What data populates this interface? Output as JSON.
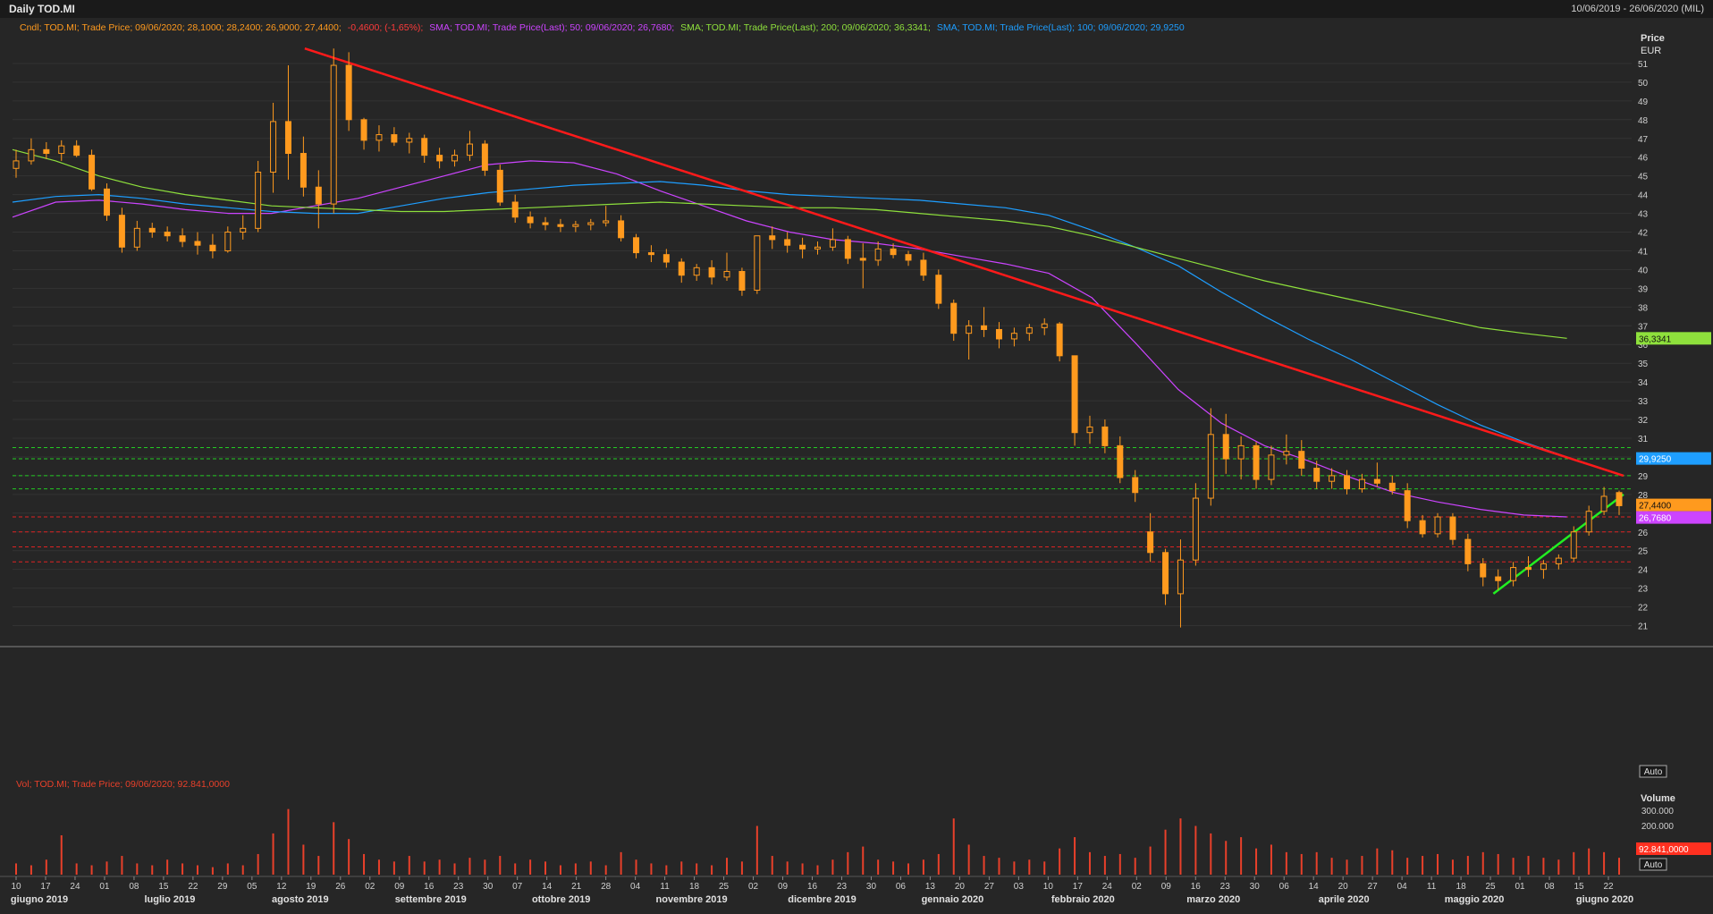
{
  "header": {
    "title": "Daily TOD.MI",
    "range": "10/06/2019 - 26/06/2020 (MIL)"
  },
  "legend": {
    "candle": "Cndl; TOD.MI; Trade Price; 09/06/2020; 28,1000; 28,2400; 26,9000; 27,4400;",
    "candle_change": "-0,4600; (-1,65%);",
    "sma50": "SMA; TOD.MI; Trade Price(Last); 50; 09/06/2020; 26,7680;",
    "sma200": "SMA; TOD.MI; Trade Price(Last); 200; 09/06/2020; 36,3341;",
    "sma100": "SMA; TOD.MI; Trade Price(Last); 100; 09/06/2020; 29,9250",
    "volume": "Vol; TOD.MI; Trade Price; 09/06/2020; 92.841,0000"
  },
  "axis": {
    "price_title": "Price",
    "price_unit": "EUR",
    "volume_title": "Volume",
    "auto_label": "Auto",
    "volume_ticks": [
      "300.000",
      "200.000"
    ]
  },
  "tags": {
    "sma200": "36,3341",
    "sma100": "29,9250",
    "last": "27,4400",
    "sma50": "26,7680",
    "volume": "92.841,0000"
  },
  "colors": {
    "background": "#262626",
    "candle": "#ff9a1e",
    "sma50": "#cc44ff",
    "sma100": "#1e9eff",
    "sma200": "#8ee03c",
    "trend_down": "#ff1a1a",
    "trend_up": "#22ee22",
    "support": "#22cc22",
    "resistance": "#dd2222",
    "volume": "#e8402a"
  },
  "chart_data": {
    "type": "line",
    "ylim": [
      20.5,
      52
    ],
    "yticks": [
      21,
      22,
      23,
      24,
      25,
      26,
      27,
      28,
      29,
      30,
      31,
      32,
      33,
      34,
      35,
      36,
      37,
      38,
      39,
      40,
      41,
      42,
      43,
      44,
      45,
      46,
      47,
      48,
      49,
      50,
      51
    ],
    "day_labels": [
      "10",
      "17",
      "24",
      "01",
      "08",
      "15",
      "22",
      "29",
      "05",
      "12",
      "19",
      "26",
      "02",
      "09",
      "16",
      "23",
      "30",
      "07",
      "14",
      "21",
      "28",
      "04",
      "11",
      "18",
      "25",
      "02",
      "09",
      "16",
      "23",
      "30",
      "06",
      "13",
      "20",
      "27",
      "03",
      "10",
      "17",
      "24",
      "02",
      "09",
      "16",
      "23",
      "30",
      "06",
      "14",
      "20",
      "27",
      "04",
      "11",
      "18",
      "25",
      "01",
      "08",
      "15",
      "22"
    ],
    "month_labels": [
      "giugno 2019",
      "luglio 2019",
      "agosto 2019",
      "settembre 2019",
      "ottobre 2019",
      "novembre 2019",
      "dicembre 2019",
      "gennaio 2020",
      "febbraio 2020",
      "marzo 2020",
      "aprile 2020",
      "maggio 2020",
      "giugno 2020"
    ],
    "series": [
      {
        "name": "Cndl; TOD.MI; Trade Price",
        "values": [
          [
            45.4,
            46.4,
            44.9,
            45.8
          ],
          [
            45.8,
            47.0,
            45.6,
            46.4
          ],
          [
            46.4,
            46.8,
            45.9,
            46.2
          ],
          [
            46.2,
            46.9,
            45.8,
            46.6
          ],
          [
            46.6,
            46.9,
            46.0,
            46.1
          ],
          [
            46.1,
            46.4,
            44.2,
            44.3
          ],
          [
            44.3,
            44.6,
            42.6,
            42.9
          ],
          [
            42.9,
            43.3,
            40.9,
            41.2
          ],
          [
            41.2,
            42.6,
            41.0,
            42.2
          ],
          [
            42.2,
            42.5,
            41.7,
            42.0
          ],
          [
            42.0,
            42.3,
            41.5,
            41.8
          ],
          [
            41.8,
            42.2,
            41.2,
            41.5
          ],
          [
            41.5,
            42.0,
            40.8,
            41.3
          ],
          [
            41.3,
            41.9,
            40.6,
            41.0
          ],
          [
            41.0,
            42.3,
            40.9,
            42.0
          ],
          [
            42.0,
            42.9,
            41.6,
            42.2
          ],
          [
            42.2,
            45.8,
            42.0,
            45.2
          ],
          [
            45.2,
            48.9,
            44.1,
            47.9
          ],
          [
            47.9,
            50.9,
            44.8,
            46.2
          ],
          [
            46.2,
            47.1,
            43.9,
            44.4
          ],
          [
            44.4,
            45.3,
            42.2,
            43.5
          ],
          [
            43.5,
            51.8,
            43.0,
            50.9
          ],
          [
            50.9,
            51.6,
            47.4,
            48.0
          ],
          [
            48.0,
            48.1,
            46.4,
            46.9
          ],
          [
            46.9,
            47.7,
            46.3,
            47.2
          ],
          [
            47.2,
            47.6,
            46.6,
            46.8
          ],
          [
            46.8,
            47.3,
            46.2,
            47.0
          ],
          [
            47.0,
            47.2,
            45.7,
            46.1
          ],
          [
            46.1,
            46.5,
            45.4,
            45.8
          ],
          [
            45.8,
            46.4,
            45.5,
            46.1
          ],
          [
            46.1,
            47.4,
            45.8,
            46.7
          ],
          [
            46.7,
            46.9,
            45.0,
            45.3
          ],
          [
            45.3,
            45.6,
            43.4,
            43.6
          ],
          [
            43.6,
            44.0,
            42.5,
            42.8
          ],
          [
            42.8,
            43.1,
            42.2,
            42.5
          ],
          [
            42.5,
            42.8,
            42.1,
            42.4
          ],
          [
            42.4,
            42.7,
            42.0,
            42.3
          ],
          [
            42.3,
            42.6,
            42.0,
            42.4
          ],
          [
            42.4,
            42.7,
            42.1,
            42.5
          ],
          [
            42.5,
            43.4,
            42.3,
            42.6
          ],
          [
            42.6,
            42.9,
            41.5,
            41.7
          ],
          [
            41.7,
            41.9,
            40.6,
            40.9
          ],
          [
            40.9,
            41.3,
            40.4,
            40.8
          ],
          [
            40.8,
            41.1,
            40.1,
            40.4
          ],
          [
            40.4,
            40.6,
            39.3,
            39.7
          ],
          [
            39.7,
            40.3,
            39.4,
            40.1
          ],
          [
            40.1,
            40.5,
            39.2,
            39.6
          ],
          [
            39.6,
            40.9,
            39.4,
            39.9
          ],
          [
            39.9,
            40.1,
            38.6,
            38.9
          ],
          [
            38.9,
            40.3,
            38.7,
            41.8
          ],
          [
            41.8,
            42.3,
            41.1,
            41.6
          ],
          [
            41.6,
            42.0,
            40.9,
            41.3
          ],
          [
            41.3,
            41.7,
            40.6,
            41.1
          ],
          [
            41.1,
            41.5,
            40.8,
            41.2
          ],
          [
            41.2,
            42.2,
            41.0,
            41.6
          ],
          [
            41.6,
            41.8,
            40.3,
            40.6
          ],
          [
            40.6,
            41.4,
            39.0,
            40.5
          ],
          [
            40.5,
            41.5,
            40.2,
            41.1
          ],
          [
            41.1,
            41.4,
            40.6,
            40.8
          ],
          [
            40.8,
            41.0,
            40.2,
            40.5
          ],
          [
            40.5,
            40.9,
            39.4,
            39.7
          ],
          [
            39.7,
            40.0,
            37.9,
            38.2
          ],
          [
            38.2,
            38.4,
            36.2,
            36.6
          ],
          [
            36.6,
            37.3,
            35.2,
            37.0
          ],
          [
            37.0,
            38.0,
            36.4,
            36.8
          ],
          [
            36.8,
            37.2,
            35.8,
            36.3
          ],
          [
            36.3,
            36.9,
            35.9,
            36.6
          ],
          [
            36.6,
            37.1,
            36.2,
            36.9
          ],
          [
            36.9,
            37.4,
            36.5,
            37.1
          ],
          [
            37.1,
            37.2,
            35.1,
            35.4
          ],
          [
            35.4,
            34.2,
            30.6,
            31.3
          ],
          [
            31.3,
            32.2,
            30.7,
            31.6
          ],
          [
            31.6,
            32.0,
            30.2,
            30.6
          ],
          [
            30.6,
            31.1,
            28.6,
            28.9
          ],
          [
            28.9,
            29.3,
            27.6,
            28.1
          ],
          [
            26.0,
            27.0,
            24.4,
            24.9
          ],
          [
            24.9,
            25.1,
            22.1,
            22.7
          ],
          [
            22.7,
            25.6,
            20.9,
            24.5
          ],
          [
            24.5,
            28.6,
            24.2,
            27.8
          ],
          [
            27.8,
            32.6,
            27.4,
            31.2
          ],
          [
            31.2,
            32.3,
            29.1,
            29.9
          ],
          [
            29.9,
            31.1,
            28.8,
            30.6
          ],
          [
            30.6,
            30.8,
            28.3,
            28.8
          ],
          [
            28.8,
            30.6,
            28.5,
            30.1
          ],
          [
            30.1,
            31.2,
            29.6,
            30.3
          ],
          [
            30.3,
            30.9,
            29.0,
            29.4
          ],
          [
            29.4,
            29.8,
            28.3,
            28.7
          ],
          [
            28.7,
            29.4,
            28.3,
            29.0
          ],
          [
            29.0,
            29.3,
            28.0,
            28.3
          ],
          [
            28.3,
            29.1,
            28.1,
            28.8
          ],
          [
            28.8,
            29.7,
            28.4,
            28.6
          ],
          [
            28.6,
            29.0,
            28.0,
            28.2
          ],
          [
            28.2,
            28.6,
            26.2,
            26.6
          ],
          [
            26.6,
            26.9,
            25.7,
            25.9
          ],
          [
            25.9,
            27.0,
            25.7,
            26.8
          ],
          [
            26.8,
            27.0,
            25.3,
            25.6
          ],
          [
            25.6,
            25.9,
            23.9,
            24.3
          ],
          [
            24.3,
            24.6,
            23.1,
            23.6
          ],
          [
            23.6,
            24.0,
            22.9,
            23.4
          ],
          [
            23.4,
            24.4,
            23.1,
            24.1
          ],
          [
            24.1,
            24.7,
            23.6,
            24.0
          ],
          [
            24.0,
            24.5,
            23.5,
            24.3
          ],
          [
            24.3,
            24.8,
            24.0,
            24.6
          ],
          [
            24.6,
            26.3,
            24.4,
            26.0
          ],
          [
            26.0,
            27.4,
            25.8,
            27.1
          ],
          [
            27.1,
            28.4,
            26.9,
            27.9
          ],
          [
            28.1,
            28.2,
            26.9,
            27.4
          ]
        ]
      },
      {
        "name": "SMA; TOD.MI; Trade Price(Last); 50",
        "values": [
          42.8,
          43.6,
          43.7,
          43.5,
          43.2,
          43.0,
          43.0,
          43.4,
          43.8,
          44.4,
          45.0,
          45.6,
          45.8,
          45.7,
          45.1,
          44.2,
          43.4,
          42.6,
          42.0,
          41.6,
          41.4,
          41.1,
          40.7,
          40.3,
          39.8,
          38.5,
          36.1,
          33.6,
          31.8,
          30.6,
          29.8,
          28.9,
          28.1,
          27.6,
          27.2,
          26.9,
          26.8
        ]
      },
      {
        "name": "SMA; TOD.MI; Trade Price(Last); 100",
        "values": [
          43.6,
          43.9,
          44.0,
          43.8,
          43.5,
          43.3,
          43.1,
          43.0,
          43.0,
          43.4,
          43.8,
          44.1,
          44.3,
          44.5,
          44.6,
          44.7,
          44.5,
          44.2,
          44.0,
          43.9,
          43.8,
          43.7,
          43.5,
          43.3,
          42.9,
          42.1,
          41.2,
          40.2,
          38.8,
          37.5,
          36.3,
          35.2,
          34.0,
          32.8,
          31.7,
          30.8,
          30.0
        ]
      },
      {
        "name": "SMA; TOD.MI; Trade Price(Last); 200",
        "values": [
          46.4,
          45.8,
          45.0,
          44.4,
          44.0,
          43.7,
          43.4,
          43.3,
          43.2,
          43.1,
          43.1,
          43.2,
          43.3,
          43.4,
          43.5,
          43.6,
          43.5,
          43.4,
          43.3,
          43.3,
          43.2,
          43.0,
          42.8,
          42.6,
          42.3,
          41.8,
          41.2,
          40.6,
          40.0,
          39.4,
          38.9,
          38.4,
          37.9,
          37.4,
          36.9,
          36.6,
          36.33
        ]
      }
    ],
    "volume_values": [
      0.06,
      0.05,
      0.08,
      0.21,
      0.06,
      0.05,
      0.07,
      0.1,
      0.06,
      0.05,
      0.08,
      0.06,
      0.05,
      0.04,
      0.06,
      0.05,
      0.11,
      0.22,
      0.35,
      0.16,
      0.1,
      0.28,
      0.19,
      0.11,
      0.08,
      0.07,
      0.1,
      0.07,
      0.08,
      0.06,
      0.09,
      0.08,
      0.1,
      0.06,
      0.08,
      0.07,
      0.05,
      0.06,
      0.07,
      0.05,
      0.12,
      0.08,
      0.06,
      0.05,
      0.07,
      0.06,
      0.05,
      0.09,
      0.07,
      0.26,
      0.1,
      0.07,
      0.06,
      0.05,
      0.08,
      0.12,
      0.15,
      0.08,
      0.07,
      0.06,
      0.08,
      0.11,
      0.3,
      0.16,
      0.1,
      0.09,
      0.07,
      0.08,
      0.07,
      0.14,
      0.2,
      0.12,
      0.1,
      0.11,
      0.09,
      0.15,
      0.24,
      0.3,
      0.26,
      0.22,
      0.18,
      0.2,
      0.14,
      0.16,
      0.12,
      0.11,
      0.12,
      0.09,
      0.08,
      0.1,
      0.14,
      0.13,
      0.09,
      0.1,
      0.11,
      0.08,
      0.1,
      0.12,
      0.11,
      0.09,
      0.1,
      0.09,
      0.08,
      0.12,
      0.14,
      0.12,
      0.09
    ],
    "trendlines": [
      {
        "from": [
          0.1805,
          51.8
        ],
        "to": [
          0.995,
          29.0
        ]
      },
      {
        "from": [
          0.9146,
          22.7
        ],
        "to": [
          0.995,
          28.0
        ]
      }
    ],
    "support_levels": [
      30.5,
      29.9,
      29.0,
      28.3
    ],
    "resistance_levels": [
      26.8,
      26.0,
      25.2,
      24.4
    ]
  }
}
